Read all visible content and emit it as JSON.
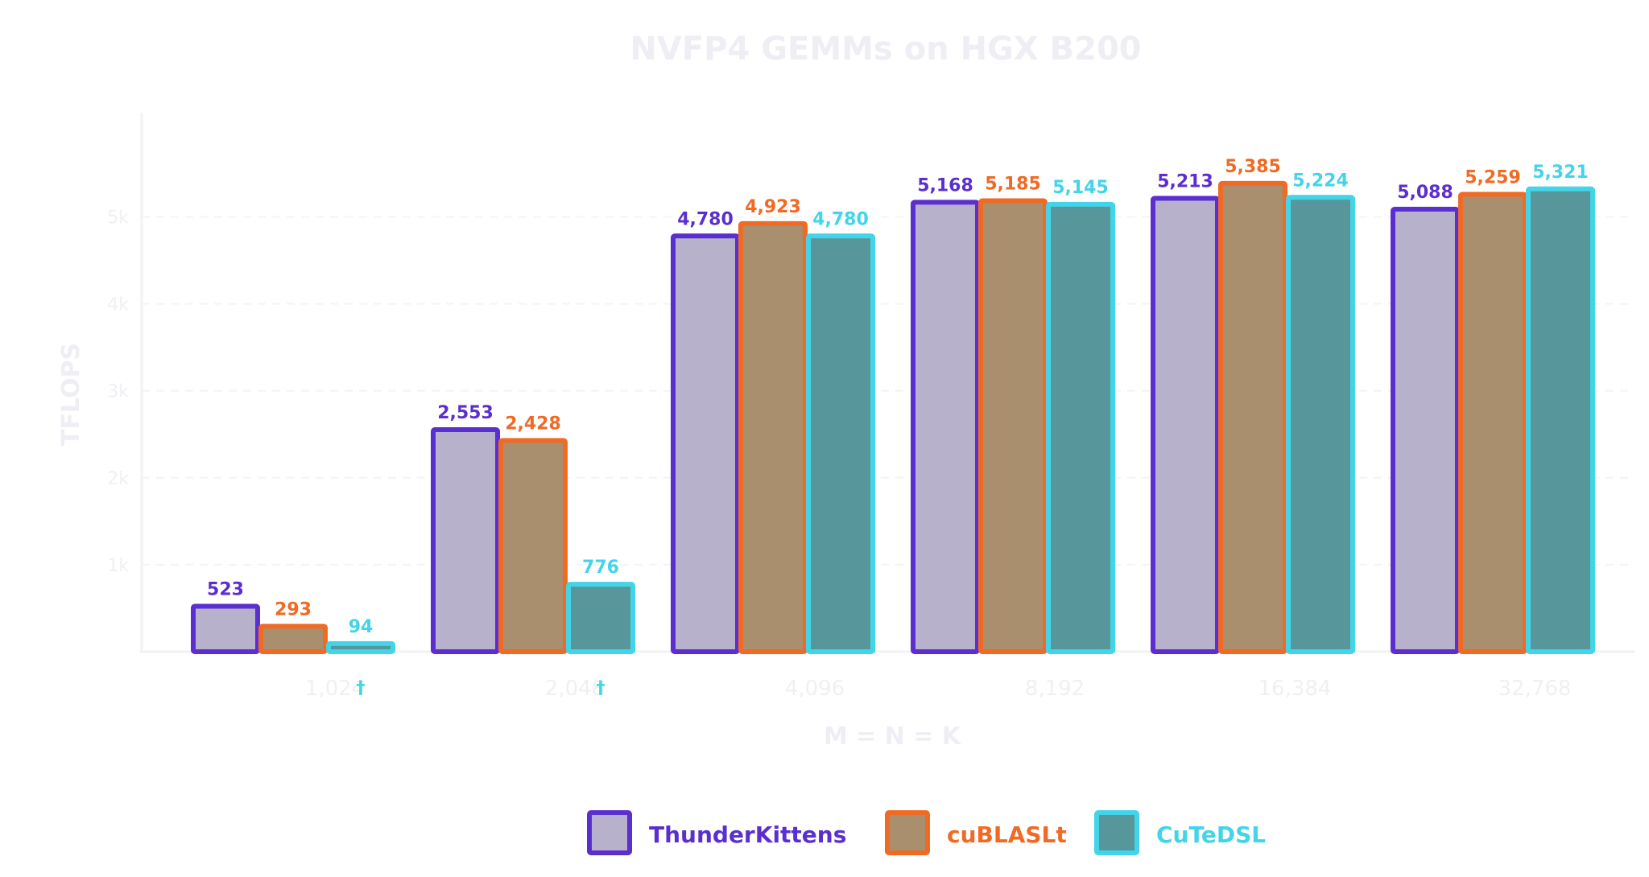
{
  "chart_data": {
    "type": "bar",
    "title": "NVFP4 GEMMs on HGX B200",
    "xlabel": "M = N = K",
    "ylabel": "TFLOPS",
    "categories": [
      "1,024",
      "2,048",
      "4,096",
      "8,192",
      "16,384",
      "32,768"
    ],
    "ylim": [
      0,
      6200
    ],
    "yticks": [
      {
        "value": 1000,
        "label": "1k"
      },
      {
        "value": 2000,
        "label": "2k"
      },
      {
        "value": 3000,
        "label": "3k"
      },
      {
        "value": 4000,
        "label": "4k"
      },
      {
        "value": 5000,
        "label": "5k"
      }
    ],
    "grid": true,
    "legend_position": "bottom-center",
    "series": [
      {
        "name": "ThunderKittens",
        "values": [
          523,
          2553,
          4780,
          5168,
          5213,
          5088
        ],
        "labels": [
          "523",
          "2,553",
          "4,780",
          "5,168",
          "5,213",
          "5,088"
        ],
        "fill": "#b8b1cc",
        "stroke": "#5b2fcf"
      },
      {
        "name": "cuBLASLt",
        "values": [
          293,
          2428,
          4923,
          5185,
          5385,
          5259
        ],
        "labels": [
          "293",
          "2,428",
          "4,923",
          "5,185",
          "5,385",
          "5,259"
        ],
        "fill": "#a98f6e",
        "stroke": "#f06a24"
      },
      {
        "name": "CuTeDSL",
        "values": [
          94,
          776,
          4780,
          5145,
          5224,
          5321
        ],
        "labels": [
          "94",
          "776",
          "4,780",
          "5,145",
          "5,224",
          "5,321"
        ],
        "fill": "#57979c",
        "stroke": "#42d4e8"
      }
    ],
    "annotations": [
      {
        "category_index": 0,
        "text": "†"
      },
      {
        "category_index": 1,
        "text": "†"
      }
    ]
  }
}
